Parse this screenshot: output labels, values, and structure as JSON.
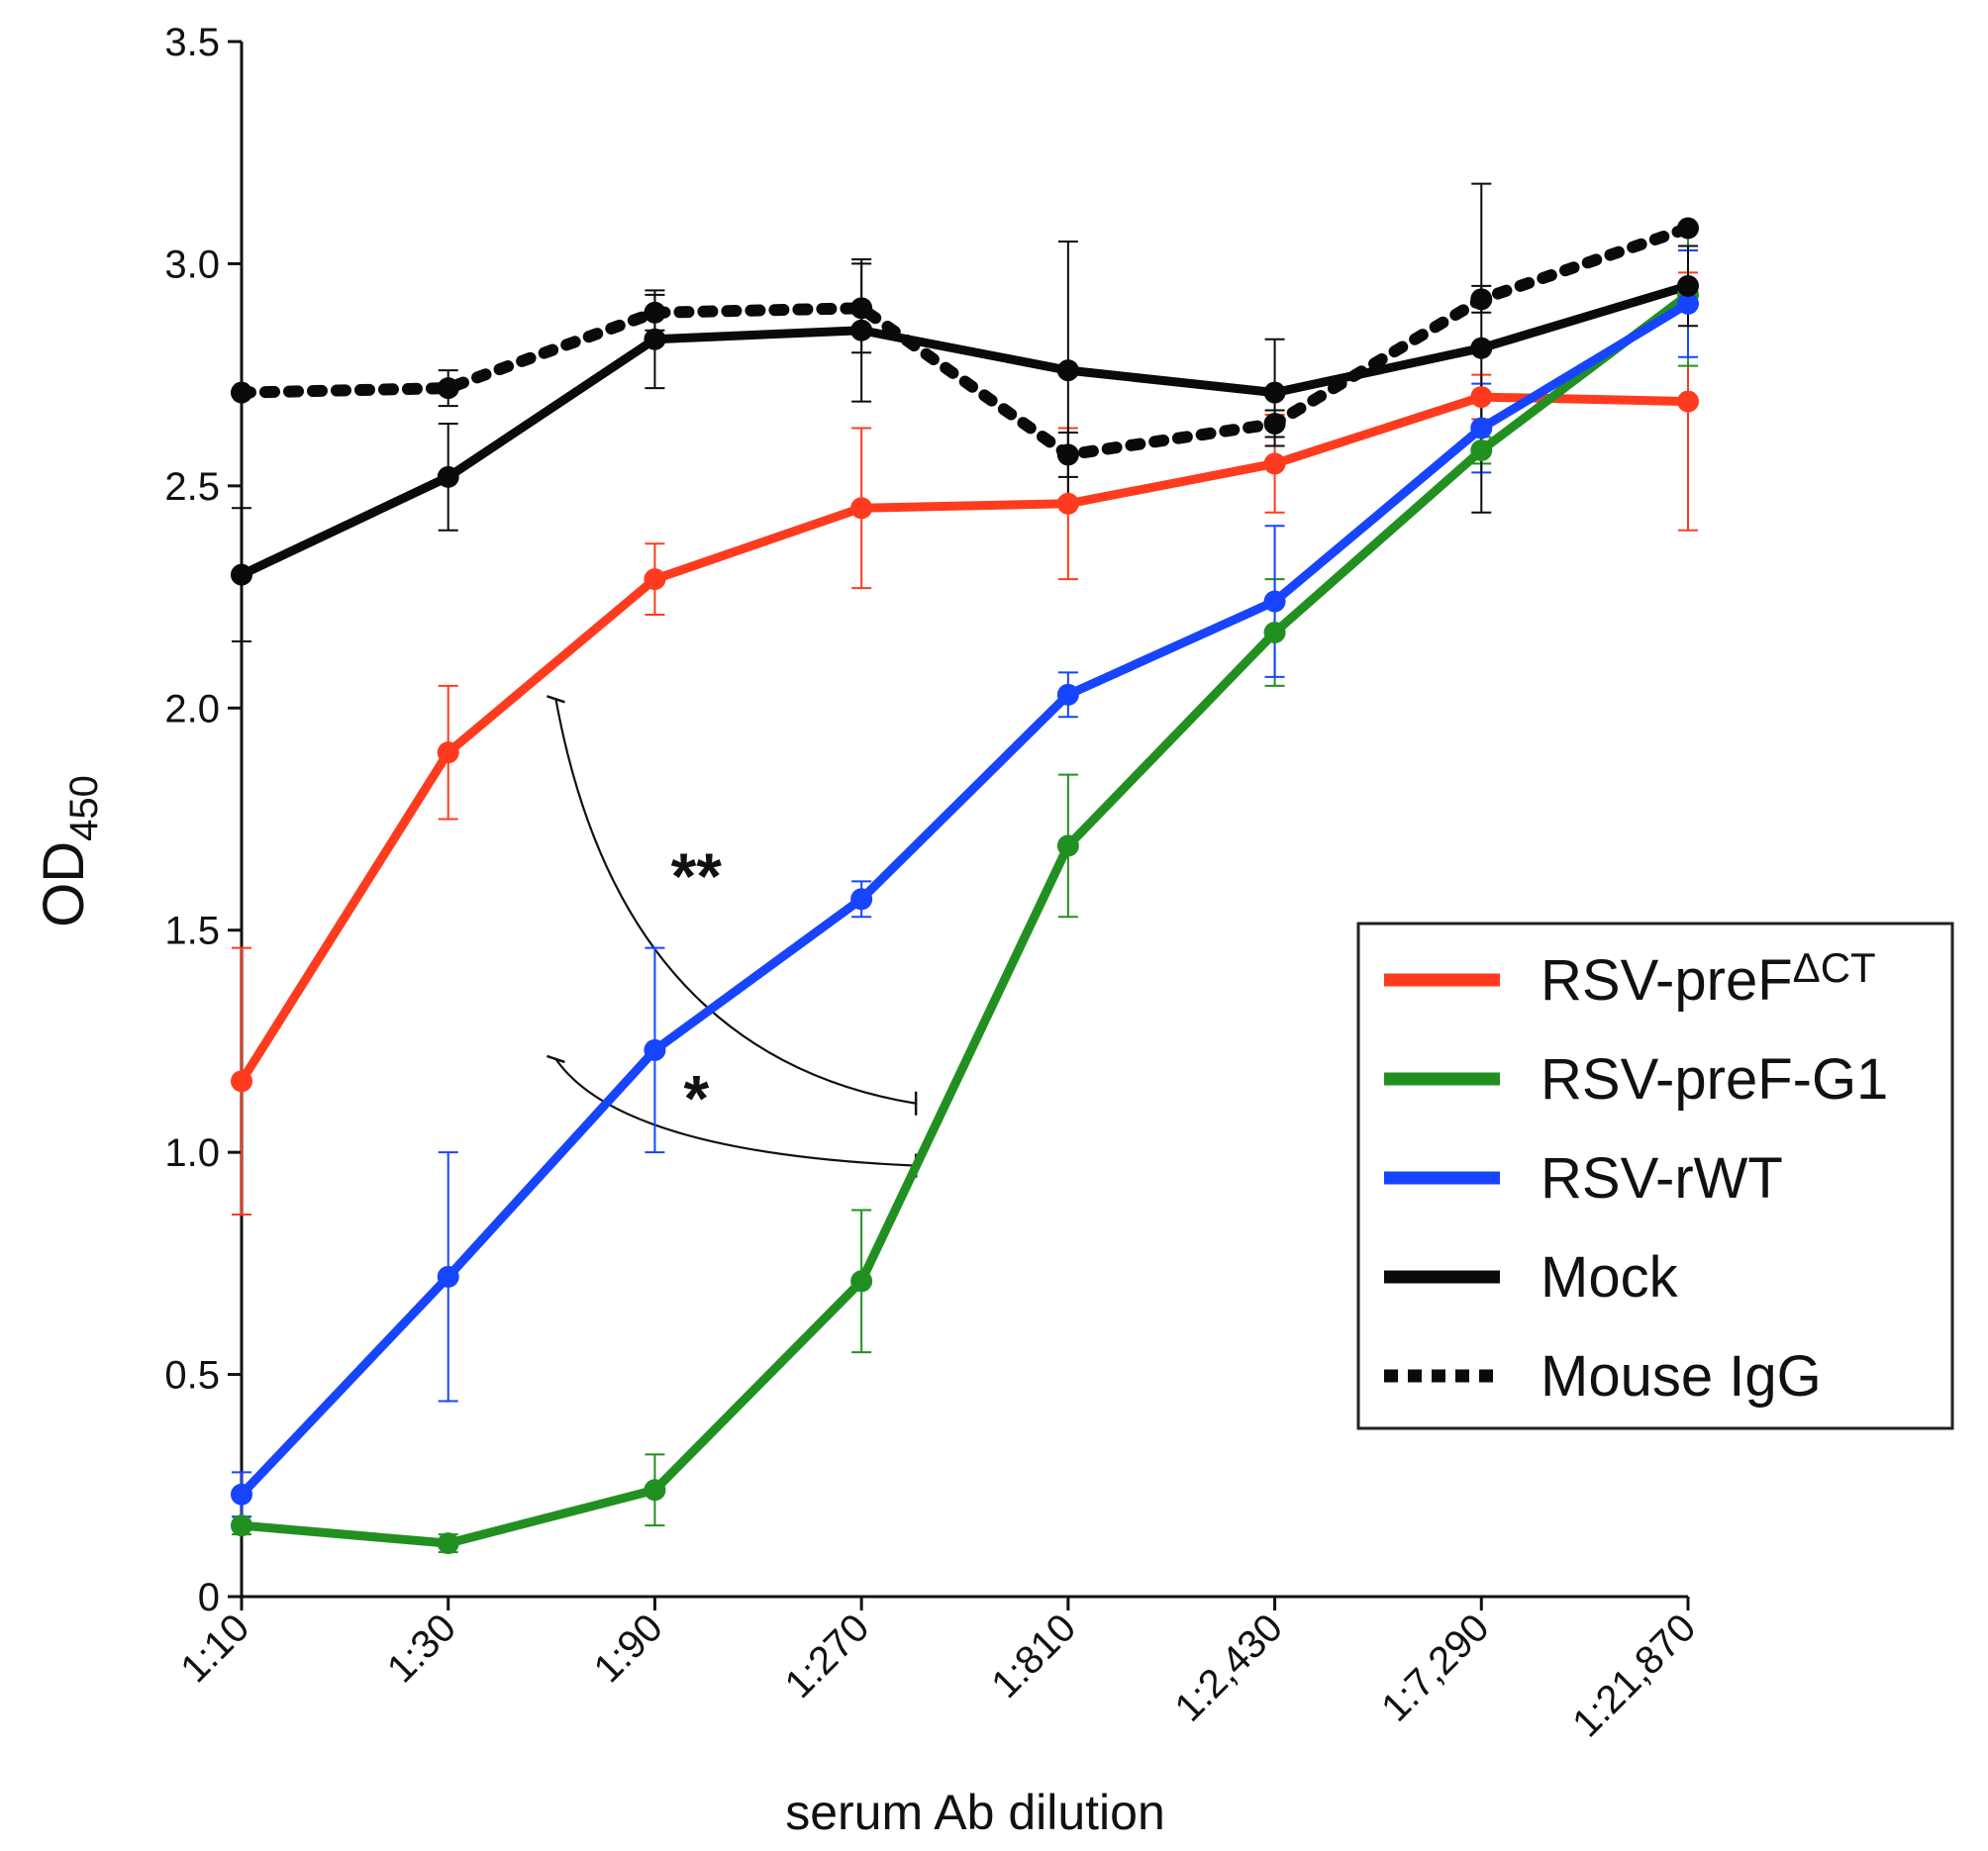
{
  "chart_data": {
    "type": "line",
    "title": "",
    "xlabel": "serum Ab dilution",
    "ylabel": "OD",
    "ylabel_subscript": "450",
    "categories": [
      "1:10",
      "1:30",
      "1:90",
      "1:270",
      "1:810",
      "1:2,430",
      "1:7,290",
      "1:21,870"
    ],
    "ylim": [
      0,
      3.5
    ],
    "yticks": [
      {
        "value": 0,
        "label": "0"
      },
      {
        "value": 0.5,
        "label": "0.5"
      },
      {
        "value": 1.0,
        "label": "1.0"
      },
      {
        "value": 1.5,
        "label": "1.5"
      },
      {
        "value": 2.0,
        "label": "2.0"
      },
      {
        "value": 2.5,
        "label": "2.5"
      },
      {
        "value": 3.0,
        "label": "3.0"
      },
      {
        "value": 3.5,
        "label": "3.5"
      }
    ],
    "grid": false,
    "legend_position": "bottom-right",
    "series": [
      {
        "name": "RSV-preF",
        "superscript": "ΔCT",
        "color": "#ff3b1f",
        "dashed": false,
        "values": [
          1.16,
          1.9,
          2.29,
          2.45,
          2.46,
          2.55,
          2.7,
          2.69
        ],
        "errors": [
          0.3,
          0.15,
          0.08,
          0.18,
          0.17,
          0.11,
          0.05,
          0.29
        ]
      },
      {
        "name": "RSV-preF-G1",
        "superscript": "",
        "color": "#229021",
        "dashed": false,
        "values": [
          0.16,
          0.12,
          0.24,
          0.71,
          1.69,
          2.17,
          2.58,
          2.93
        ],
        "errors": [
          0.02,
          0.02,
          0.08,
          0.16,
          0.16,
          0.12,
          0.03,
          0.16
        ]
      },
      {
        "name": "RSV-rWT",
        "superscript": "",
        "color": "#1744ff",
        "dashed": false,
        "values": [
          0.23,
          0.72,
          1.23,
          1.57,
          2.03,
          2.24,
          2.63,
          2.91
        ],
        "errors": [
          0.05,
          0.28,
          0.23,
          0.04,
          0.05,
          0.17,
          0.1,
          0.12
        ]
      },
      {
        "name": "Mock",
        "superscript": "",
        "color": "#0a0a0a",
        "dashed": false,
        "values": [
          2.3,
          2.52,
          2.83,
          2.85,
          2.76,
          2.71,
          2.81,
          2.95
        ],
        "errors": [
          0.15,
          0.12,
          0.11,
          0.16,
          0.29,
          0.12,
          0.37,
          0.09
        ]
      },
      {
        "name": "Mouse IgG",
        "superscript": "",
        "color": "#0a0a0a",
        "dashed": true,
        "values": [
          2.71,
          2.72,
          2.89,
          2.9,
          2.57,
          2.64,
          2.92,
          3.08
        ],
        "errors": [
          0,
          0.04,
          0.04,
          0.1,
          0.05,
          0.03,
          0.03,
          0
        ]
      }
    ],
    "annotations": [
      {
        "label": "**",
        "from_category": "1:90",
        "from_value": 2.02,
        "to_category": "1:270",
        "to_value": 1.11,
        "text_value": 1.62
      },
      {
        "label": "*",
        "from_category": "1:90",
        "from_value": 1.21,
        "to_category": "1:270",
        "to_value": 0.97,
        "text_value": 1.12
      }
    ]
  }
}
